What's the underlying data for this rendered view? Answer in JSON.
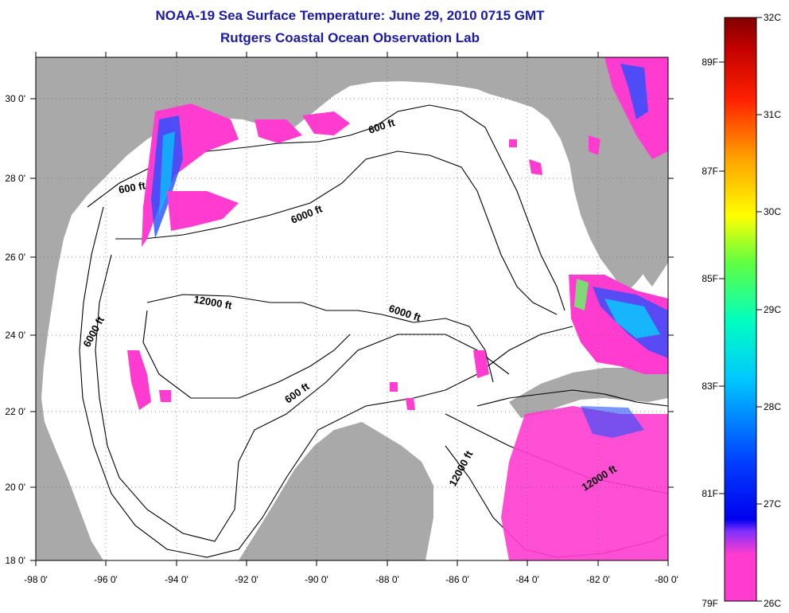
{
  "title": "NOAA-19 Sea Surface Temperature:  June 29, 2010 0715 GMT",
  "subtitle": "Rutgers Coastal Ocean Observation Lab",
  "lat_labels": [
    "30 0'",
    "28 0'",
    "26 0'",
    "24 0'",
    "22 0'",
    "20 0'",
    "18 0'"
  ],
  "lon_labels": [
    "-98 0'",
    "-96 0'",
    "-94 0'",
    "-92 0'",
    "-90 0'",
    "-88 0'",
    "-86 0'",
    "-84 0'",
    "-82 0'",
    "-80 0'"
  ],
  "depth_labels": [
    "600 ft",
    "600 ft",
    "6000 ft",
    "6000 ft",
    "12000 ft",
    "6000 ft",
    "600 ft",
    "12000 ft",
    "12000 ft"
  ],
  "colorbar": {
    "celsius": [
      "32C",
      "31C",
      "30C",
      "29C",
      "28C",
      "27C",
      "26C"
    ],
    "fahrenheit": [
      "89F",
      "87F",
      "85F",
      "83F",
      "81F",
      "79F"
    ]
  },
  "colors": {
    "land": "#a9a9a9",
    "ocean": "#ffffff",
    "title": "#1a1aa6",
    "sst_min": "#ff33cc",
    "sst_max": "#800000"
  }
}
